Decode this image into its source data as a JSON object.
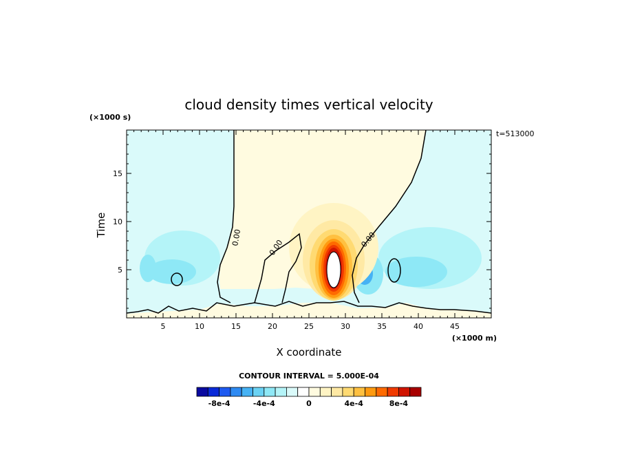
{
  "chart_data": {
    "type": "heatmap",
    "title": "cloud density times vertical velocity",
    "xlabel": "X coordinate",
    "ylabel": "Time",
    "x_unit": "(×1000 m)",
    "y_unit": "(×1000 s)",
    "time_stamp": "t=513000",
    "xlim": [
      0,
      50
    ],
    "ylim": [
      0,
      19.5
    ],
    "x_ticks": [
      5,
      10,
      15,
      20,
      25,
      30,
      35,
      40,
      45
    ],
    "y_ticks": [
      5,
      10,
      15
    ],
    "x_tick_labels": [
      "5",
      "10",
      "15",
      "20",
      "25",
      "30",
      "35",
      "40",
      "45"
    ],
    "y_tick_labels": [
      "5",
      "10",
      "15"
    ],
    "contour_interval_text": "CONTOUR INTERVAL = 5.000E-04",
    "contour_labels": [
      "0.00",
      "0.00",
      "0.00"
    ],
    "colorbar": {
      "colors": [
        "#0a0aa0",
        "#0a2ad8",
        "#1e5af0",
        "#2e8af2",
        "#46b2f4",
        "#6ad2f4",
        "#8ee8f6",
        "#b4f4f8",
        "#dafafa",
        "#ffffff",
        "#fffbe0",
        "#fff4c4",
        "#ffe9a4",
        "#ffda72",
        "#ffc040",
        "#ff9a10",
        "#ff6a00",
        "#f03a00",
        "#d01400",
        "#a80000"
      ],
      "tick_labels": [
        "-8e-4",
        "-4e-4",
        "0",
        "4e-4",
        "8e-4"
      ],
      "tick_values": [
        -0.0008,
        -0.0004,
        0,
        0.0004,
        0.0008
      ],
      "range": [
        -0.001,
        0.001
      ]
    },
    "features": [
      {
        "label": "positive core",
        "x": 28.2,
        "t": 5.5,
        "peak": 0.001
      },
      {
        "label": "negative lobe",
        "x": 32.0,
        "t": 4.5,
        "peak": -0.0005
      },
      {
        "label": "negative lobe",
        "x": 8.5,
        "t": 5.0,
        "peak": -0.0002
      },
      {
        "label": "negative lobe",
        "x": 41.0,
        "t": 6.5,
        "peak": -0.0002
      }
    ]
  }
}
